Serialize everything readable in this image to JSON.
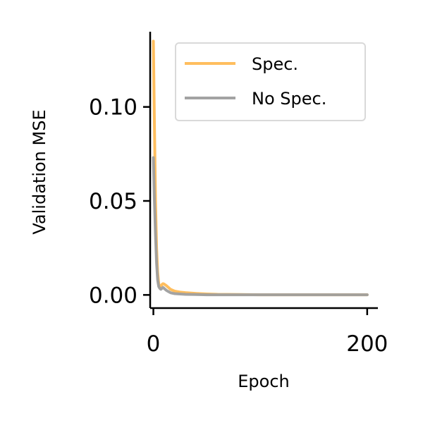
{
  "chart_data": {
    "type": "line",
    "title": "",
    "xlabel": "Epoch",
    "ylabel": "Validation MSE",
    "xlim": [
      -3,
      210
    ],
    "ylim": [
      -0.007,
      0.14
    ],
    "xticks": [
      0,
      200
    ],
    "xtick_labels": [
      "0",
      "200"
    ],
    "yticks": [
      0.0,
      0.05,
      0.1
    ],
    "ytick_labels": [
      "0.00",
      "0.05",
      "0.10"
    ],
    "grid": false,
    "legend_position": "top-right",
    "series": [
      {
        "name": "Spec.",
        "color": "#ffb74d",
        "opacity": 0.9,
        "x": [
          0,
          1,
          2,
          3,
          4,
          5,
          6,
          7,
          8,
          9,
          10,
          12,
          14,
          16,
          18,
          20,
          25,
          30,
          40,
          50,
          60,
          80,
          100,
          150,
          200
        ],
        "y": [
          0.135,
          0.09,
          0.05,
          0.025,
          0.012,
          0.006,
          0.004,
          0.0045,
          0.0055,
          0.006,
          0.0058,
          0.005,
          0.004,
          0.003,
          0.0025,
          0.002,
          0.0015,
          0.0012,
          0.0008,
          0.0005,
          0.0003,
          0.0002,
          0.0001,
          0.0001,
          0.0001
        ]
      },
      {
        "name": "No Spec.",
        "color": "#9e9e9e",
        "opacity": 0.95,
        "x": [
          0,
          1,
          2,
          3,
          4,
          5,
          6,
          7,
          8,
          9,
          10,
          12,
          14,
          16,
          18,
          20,
          25,
          30,
          40,
          50,
          60,
          80,
          100,
          150,
          200
        ],
        "y": [
          0.073,
          0.05,
          0.032,
          0.017,
          0.008,
          0.0045,
          0.0035,
          0.003,
          0.0035,
          0.004,
          0.0035,
          0.0025,
          0.0018,
          0.0012,
          0.0009,
          0.0007,
          0.0005,
          0.0003,
          0.0002,
          0.0001,
          0.0001,
          0.0001,
          0.0001,
          0.0001,
          0.0001
        ]
      }
    ]
  }
}
